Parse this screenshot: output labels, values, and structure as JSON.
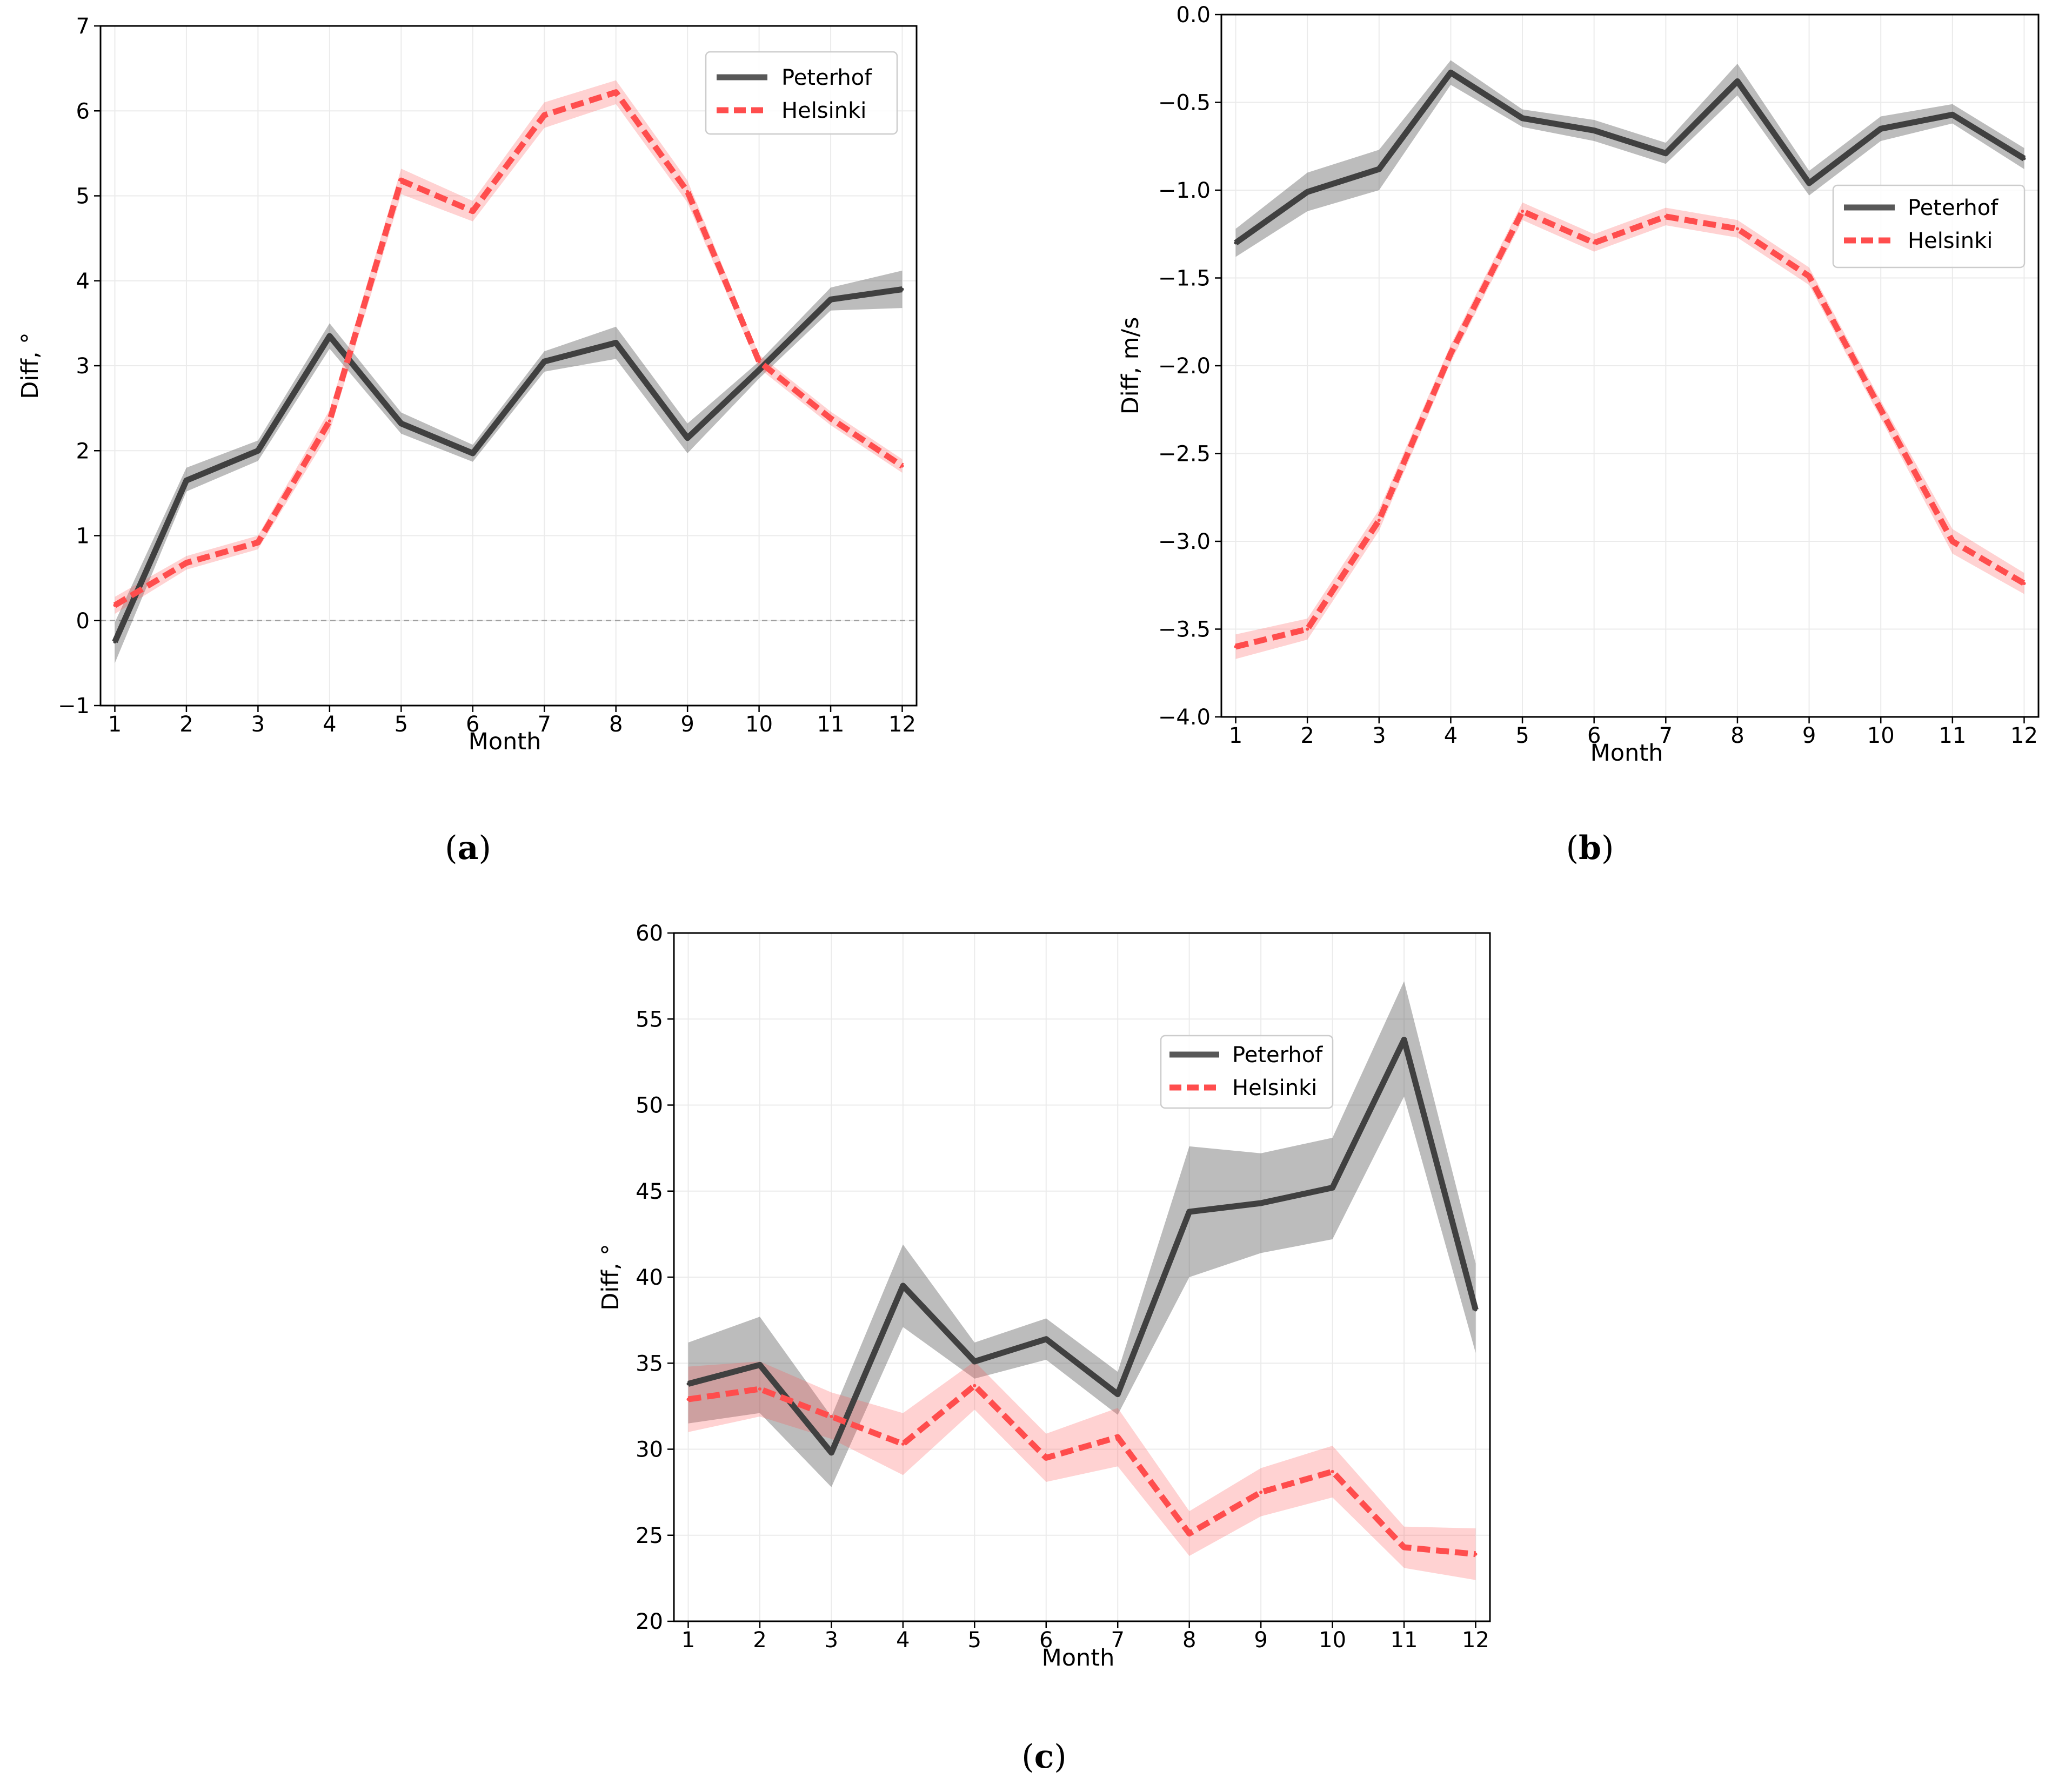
{
  "chart_data": [
    {
      "type": "line",
      "panel_label": "a",
      "xlabel": "Month",
      "ylabel": "Diff, °",
      "xlim": [
        0.8,
        12.2
      ],
      "ylim": [
        -1,
        7
      ],
      "yticks": [
        -1,
        0,
        1,
        2,
        3,
        4,
        5,
        6,
        7
      ],
      "ytick_labels": [
        "−1",
        "0",
        "1",
        "2",
        "3",
        "4",
        "5",
        "6",
        "7"
      ],
      "xticks": [
        1,
        2,
        3,
        4,
        5,
        6,
        7,
        8,
        9,
        10,
        11,
        12
      ],
      "grid": true,
      "zero_line": true,
      "legend_position": "top-right",
      "series": [
        {
          "name": "Peterhof",
          "color": "#404040",
          "style": "solid",
          "x": [
            1,
            2,
            3,
            4,
            5,
            6,
            7,
            8,
            9,
            10,
            11,
            12
          ],
          "values": [
            -0.25,
            1.65,
            2.0,
            3.35,
            2.32,
            1.97,
            3.05,
            3.27,
            2.15,
            2.95,
            3.78,
            3.9
          ],
          "lower": [
            -0.5,
            1.52,
            1.88,
            3.2,
            2.2,
            1.87,
            2.93,
            3.08,
            1.97,
            2.85,
            3.65,
            3.68
          ],
          "upper": [
            -0.02,
            1.8,
            2.12,
            3.5,
            2.45,
            2.07,
            3.17,
            3.46,
            2.32,
            3.05,
            3.92,
            4.12
          ]
        },
        {
          "name": "Helsinki",
          "color": "#ff4d4d",
          "style": "dashed",
          "x": [
            1,
            2,
            3,
            4,
            5,
            6,
            7,
            8,
            9,
            10,
            11,
            12
          ],
          "values": [
            0.18,
            0.68,
            0.92,
            2.35,
            5.18,
            4.82,
            5.95,
            6.22,
            5.05,
            3.05,
            2.38,
            1.82
          ],
          "lower": [
            0.08,
            0.6,
            0.84,
            2.22,
            5.02,
            4.7,
            5.8,
            6.08,
            4.92,
            2.97,
            2.3,
            1.74
          ],
          "upper": [
            0.28,
            0.76,
            1.0,
            2.48,
            5.32,
            4.94,
            6.1,
            6.36,
            5.18,
            3.13,
            2.46,
            1.9
          ]
        }
      ]
    },
    {
      "type": "line",
      "panel_label": "b",
      "xlabel": "Month",
      "ylabel": "Diff, m/s",
      "xlim": [
        0.8,
        12.2
      ],
      "ylim": [
        -4.0,
        0.0
      ],
      "yticks": [
        -4.0,
        -3.5,
        -3.0,
        -2.5,
        -2.0,
        -1.5,
        -1.0,
        -0.5,
        0.0
      ],
      "ytick_labels": [
        "−4.0",
        "−3.5",
        "−3.0",
        "−2.5",
        "−2.0",
        "−1.5",
        "−1.0",
        "−0.5",
        "0.0"
      ],
      "xticks": [
        1,
        2,
        3,
        4,
        5,
        6,
        7,
        8,
        9,
        10,
        11,
        12
      ],
      "grid": true,
      "zero_line": false,
      "legend_position": "center-right",
      "series": [
        {
          "name": "Peterhof",
          "color": "#404040",
          "style": "solid",
          "x": [
            1,
            2,
            3,
            4,
            5,
            6,
            7,
            8,
            9,
            10,
            11,
            12
          ],
          "values": [
            -1.3,
            -1.01,
            -0.88,
            -0.33,
            -0.59,
            -0.66,
            -0.79,
            -0.38,
            -0.96,
            -0.65,
            -0.57,
            -0.82
          ],
          "lower": [
            -1.38,
            -1.12,
            -1.0,
            -0.4,
            -0.64,
            -0.72,
            -0.85,
            -0.46,
            -1.03,
            -0.72,
            -0.62,
            -0.88
          ],
          "upper": [
            -1.22,
            -0.9,
            -0.77,
            -0.26,
            -0.54,
            -0.6,
            -0.73,
            -0.28,
            -0.89,
            -0.58,
            -0.51,
            -0.76
          ]
        },
        {
          "name": "Helsinki",
          "color": "#ff4d4d",
          "style": "dashed",
          "x": [
            1,
            2,
            3,
            4,
            5,
            6,
            7,
            8,
            9,
            10,
            11,
            12
          ],
          "values": [
            -3.6,
            -3.5,
            -2.88,
            -1.93,
            -1.12,
            -1.3,
            -1.15,
            -1.22,
            -1.49,
            -2.25,
            -3.0,
            -3.24
          ],
          "lower": [
            -3.67,
            -3.56,
            -2.94,
            -1.98,
            -1.17,
            -1.35,
            -1.2,
            -1.27,
            -1.54,
            -2.3,
            -3.07,
            -3.3
          ],
          "upper": [
            -3.53,
            -3.44,
            -2.82,
            -1.88,
            -1.07,
            -1.25,
            -1.1,
            -1.17,
            -1.44,
            -2.2,
            -2.93,
            -3.18
          ]
        }
      ]
    },
    {
      "type": "line",
      "panel_label": "c",
      "xlabel": "Month",
      "ylabel": "Diff, °",
      "xlim": [
        0.8,
        12.2
      ],
      "ylim": [
        20,
        60
      ],
      "yticks": [
        20,
        25,
        30,
        35,
        40,
        45,
        50,
        55,
        60
      ],
      "ytick_labels": [
        "20",
        "25",
        "30",
        "35",
        "40",
        "45",
        "50",
        "55",
        "60"
      ],
      "xticks": [
        1,
        2,
        3,
        4,
        5,
        6,
        7,
        8,
        9,
        10,
        11,
        12
      ],
      "grid": true,
      "zero_line": false,
      "legend_position": "upper-right",
      "series": [
        {
          "name": "Peterhof",
          "color": "#404040",
          "style": "solid",
          "x": [
            1,
            2,
            3,
            4,
            5,
            6,
            7,
            8,
            9,
            10,
            11,
            12
          ],
          "values": [
            33.8,
            34.9,
            29.8,
            39.5,
            35.1,
            36.4,
            33.2,
            43.8,
            44.3,
            45.2,
            53.8,
            38.1
          ],
          "lower": [
            31.5,
            32.1,
            27.8,
            37.1,
            34.1,
            35.2,
            32.0,
            40.0,
            41.4,
            42.2,
            50.5,
            35.6
          ],
          "upper": [
            36.2,
            37.7,
            31.9,
            41.9,
            36.2,
            37.6,
            34.5,
            47.6,
            47.2,
            48.1,
            57.2,
            40.8
          ]
        },
        {
          "name": "Helsinki",
          "color": "#ff4d4d",
          "style": "dashed",
          "x": [
            1,
            2,
            3,
            4,
            5,
            6,
            7,
            8,
            9,
            10,
            11,
            12
          ],
          "values": [
            32.9,
            33.5,
            31.9,
            30.3,
            33.7,
            29.5,
            30.7,
            25.1,
            27.5,
            28.7,
            24.3,
            23.9
          ],
          "lower": [
            31.0,
            31.9,
            30.6,
            28.5,
            32.3,
            28.1,
            29.0,
            23.8,
            26.1,
            27.2,
            23.1,
            22.4
          ],
          "upper": [
            34.8,
            35.1,
            33.3,
            32.1,
            35.1,
            30.9,
            32.4,
            26.4,
            28.9,
            30.2,
            25.5,
            25.4
          ]
        }
      ]
    }
  ]
}
